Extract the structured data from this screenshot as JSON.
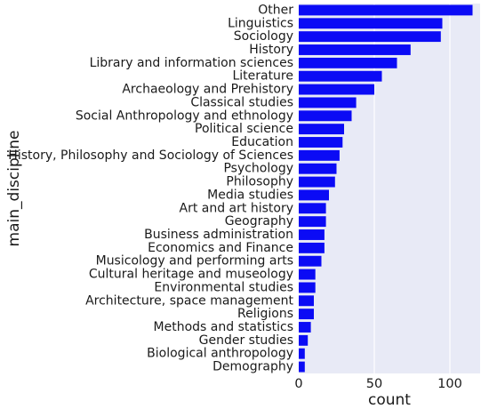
{
  "chart_data": {
    "type": "bar",
    "orientation": "horizontal",
    "xlabel": "count",
    "ylabel": "main_discipline",
    "xlim": [
      0,
      120
    ],
    "xticks": [
      0,
      50,
      100
    ],
    "grid": true,
    "colors": {
      "bar": "#0b0bf5",
      "plot_background": "#e8eaf6",
      "grid": "#ffffff"
    },
    "categories": [
      "Other",
      "Linguistics",
      "Sociology",
      "History",
      "Library and information sciences",
      "Literature",
      "Archaeology and Prehistory",
      "Classical studies",
      "Social Anthropology and ethnology",
      "Political science",
      "Education",
      "History, Philosophy and Sociology of Sciences",
      "Psychology",
      "Philosophy",
      "Media studies",
      "Art and art history",
      "Geography",
      "Business administration",
      "Economics and Finance",
      "Musicology and performing arts",
      "Cultural heritage and museology",
      "Environmental studies",
      "Architecture, space management",
      "Religions",
      "Methods and statistics",
      "Gender studies",
      "Biological anthropology",
      "Demography"
    ],
    "values": [
      115,
      95,
      94,
      74,
      65,
      55,
      50,
      38,
      35,
      30,
      29,
      27,
      25,
      24,
      20,
      18,
      18,
      17,
      17,
      15,
      11,
      11,
      10,
      10,
      8,
      6,
      4,
      4
    ]
  }
}
